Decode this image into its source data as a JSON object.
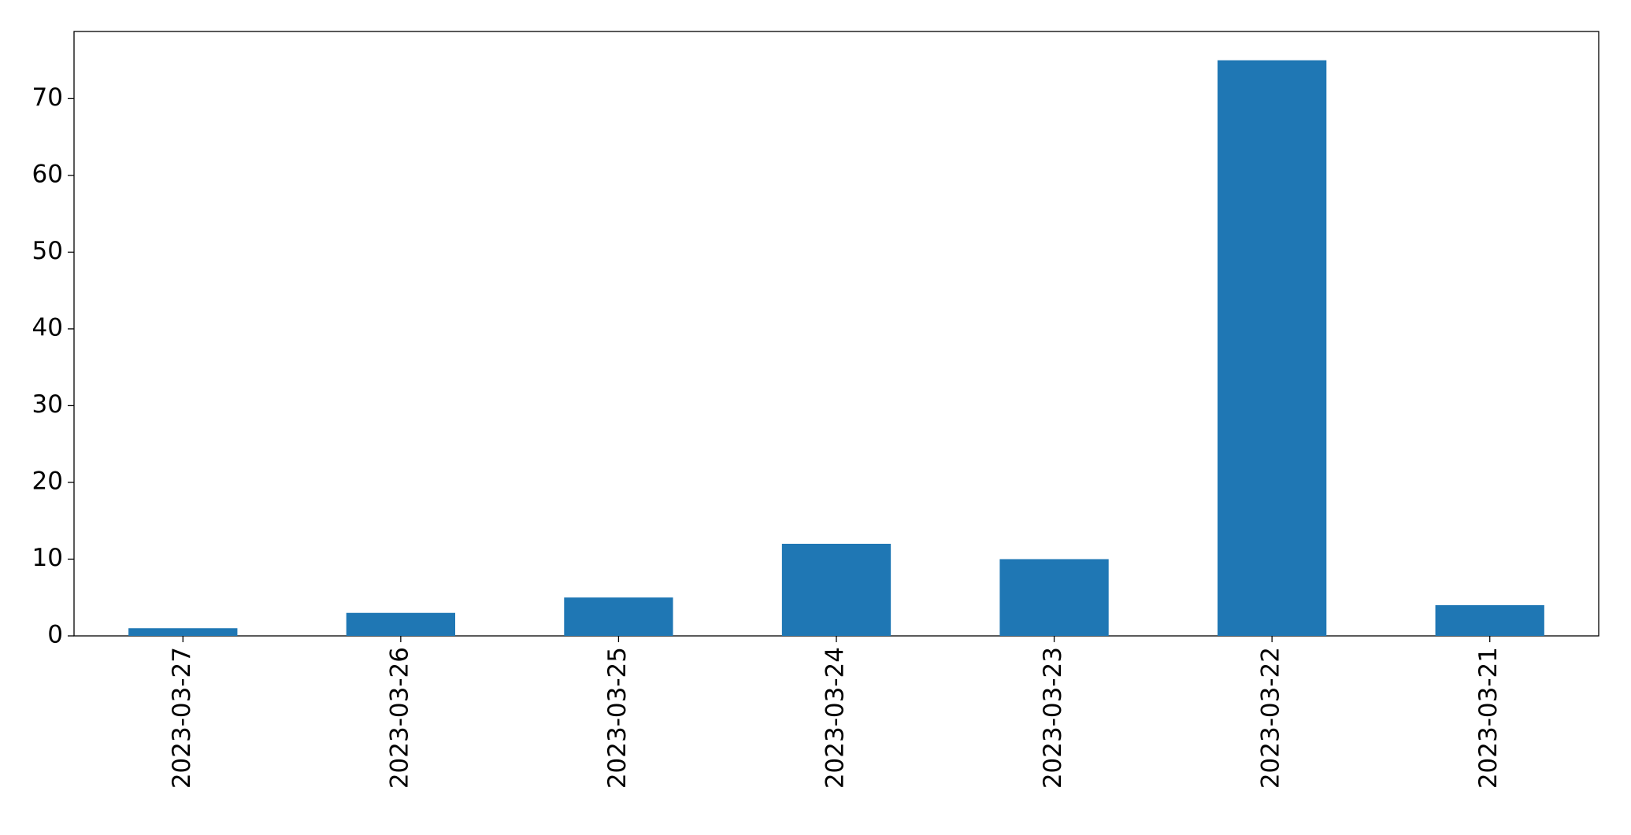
{
  "chart_data": {
    "type": "bar",
    "categories": [
      "2023-03-27",
      "2023-03-26",
      "2023-03-25",
      "2023-03-24",
      "2023-03-23",
      "2023-03-22",
      "2023-03-21"
    ],
    "values": [
      1,
      3,
      5,
      12,
      10,
      75,
      4
    ],
    "color": "#1f77b4",
    "ylim": [
      0,
      78.75
    ],
    "yticks": [
      0,
      10,
      20,
      30,
      40,
      50,
      60,
      70
    ],
    "grid": false
  }
}
